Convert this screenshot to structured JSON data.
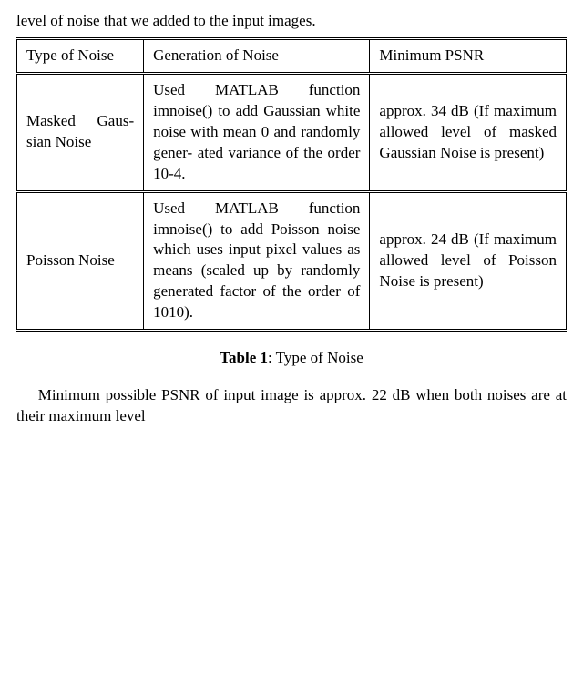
{
  "top_fragment": "level of noise that we added to the input images.",
  "table": {
    "header": {
      "c0": "Type of Noise",
      "c1": "Generation of Noise",
      "c2": "Minimum PSNR"
    },
    "rows": [
      {
        "c0": "Masked Gaus-\nsian Noise",
        "c1": "Used MATLAB function imnoise() to add Gaussian white noise with mean 0 and randomly gener-\nated variance of the order 10-4.",
        "c2": "approx. 34 dB (If maximum allowed level of masked Gaussian Noise is present)"
      },
      {
        "c0": "Poisson Noise",
        "c1": "Used MATLAB function imnoise() to add Poisson noise which uses input pixel values as means (scaled up by randomly generated factor of the order of 1010).",
        "c2": "approx. 24 dB (If maximum allowed level of Poisson Noise is present)"
      }
    ]
  },
  "caption_bold": "Table 1",
  "caption_rest": ": Type of Noise",
  "bottom_fragment": "Minimum possible PSNR of input image is approx. 22 dB when both noises are at their maximum level"
}
